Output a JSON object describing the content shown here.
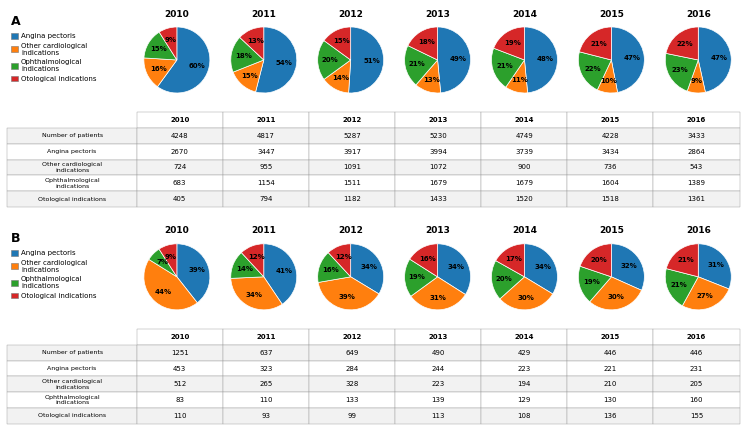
{
  "chart_data": [
    {
      "type": "pie",
      "title": "2010",
      "annotations": [
        "A"
      ],
      "legend": "upper left",
      "data_labels": true,
      "categories": [
        "Angina pectoris",
        "Other cardiological\nindications",
        "Ophthalmological\nindications",
        "Otological indications"
      ],
      "values": [
        60,
        16,
        15,
        9
      ],
      "value_labels": [
        "60%",
        "16%",
        "15%",
        "9%"
      ]
    },
    {
      "type": "pie",
      "title": "2011",
      "data_labels": true,
      "categories": [
        "Angina pectoris",
        "Other cardiological\nindications",
        "Ophthalmological\nindications",
        "Otological indications"
      ],
      "values": [
        54,
        15,
        18,
        13
      ],
      "value_labels": [
        "54%",
        "15%",
        "18%",
        "13%"
      ]
    },
    {
      "type": "pie",
      "title": "2012",
      "data_labels": true,
      "categories": [
        "Angina pectoris",
        "Other cardiological\nindications",
        "Ophthalmological\nindications",
        "Otological indications"
      ],
      "values": [
        51,
        14,
        20,
        15
      ],
      "value_labels": [
        "51%",
        "14%",
        "20%",
        "15%"
      ]
    },
    {
      "type": "pie",
      "title": "2013",
      "data_labels": true,
      "categories": [
        "Angina pectoris",
        "Other cardiological\nindications",
        "Ophthalmological\nindications",
        "Otological indications"
      ],
      "values": [
        49,
        13,
        21,
        18
      ],
      "value_labels": [
        "49%",
        "13%",
        "21%",
        "18%"
      ]
    },
    {
      "type": "pie",
      "title": "2014",
      "data_labels": true,
      "categories": [
        "Angina pectoris",
        "Other cardiological\nindications",
        "Ophthalmological\nindications",
        "Otological indications"
      ],
      "values": [
        48,
        11,
        21,
        19
      ],
      "value_labels": [
        "48%",
        "11%",
        "21%",
        "19%"
      ]
    },
    {
      "type": "pie",
      "title": "2015",
      "data_labels": true,
      "categories": [
        "Angina pectoris",
        "Other cardiological\nindications",
        "Ophthalmological\nindications",
        "Otological indications"
      ],
      "values": [
        47,
        10,
        22,
        21
      ],
      "value_labels": [
        "47%",
        "10%",
        "22%",
        "21%"
      ]
    },
    {
      "type": "pie",
      "title": "2016",
      "data_labels": true,
      "categories": [
        "Angina pectoris",
        "Other cardiological\nindications",
        "Ophthalmological\nindications",
        "Otological indications"
      ],
      "values": [
        47,
        9,
        23,
        22
      ],
      "value_labels": [
        "47%",
        "9%",
        "23%",
        "22%"
      ]
    },
    {
      "type": "table",
      "columns": [
        "2010",
        "2011",
        "2012",
        "2013",
        "2014",
        "2015",
        "2016"
      ],
      "rows": [
        {
          "label": "Number of patients",
          "values": [
            4248,
            4817,
            5287,
            5230,
            4749,
            4228,
            3433
          ]
        },
        {
          "label": "Angina pectoris",
          "values": [
            2670,
            3447,
            3917,
            3994,
            3739,
            3434,
            2864
          ]
        },
        {
          "label": "Other cardiological\nindications",
          "values": [
            724,
            955,
            1091,
            1072,
            900,
            736,
            543
          ]
        },
        {
          "label": "Ophthalmological\nindications",
          "values": [
            683,
            1154,
            1511,
            1679,
            1679,
            1604,
            1389
          ]
        },
        {
          "label": "Otological indications",
          "values": [
            405,
            794,
            1182,
            1433,
            1520,
            1518,
            1361
          ]
        }
      ]
    },
    {
      "type": "pie",
      "title": "2010",
      "annotations": [
        "B"
      ],
      "legend": "upper left",
      "data_labels": true,
      "categories": [
        "Angina pectoris",
        "Other cardiological\nindications",
        "Ophthalmological\nindications",
        "Otological indications"
      ],
      "values": [
        39,
        44,
        7,
        9
      ],
      "value_labels": [
        "39%",
        "44%",
        "7%",
        "9%"
      ]
    },
    {
      "type": "pie",
      "title": "2011",
      "data_labels": true,
      "categories": [
        "Angina pectoris",
        "Other cardiological\nindications",
        "Ophthalmological\nindications",
        "Otological indications"
      ],
      "values": [
        41,
        34,
        14,
        12
      ],
      "value_labels": [
        "41%",
        "34%",
        "14%",
        "12%"
      ]
    },
    {
      "type": "pie",
      "title": "2012",
      "data_labels": true,
      "categories": [
        "Angina pectoris",
        "Other cardiological\nindications",
        "Ophthalmological\nindications",
        "Otological indications"
      ],
      "values": [
        34,
        39,
        16,
        12
      ],
      "value_labels": [
        "34%",
        "39%",
        "16%",
        "12%"
      ]
    },
    {
      "type": "pie",
      "title": "2013",
      "data_labels": true,
      "categories": [
        "Angina pectoris",
        "Other cardiological\nindications",
        "Ophthalmological\nindications",
        "Otological indications"
      ],
      "values": [
        34,
        31,
        19,
        16
      ],
      "value_labels": [
        "34%",
        "31%",
        "19%",
        "16%"
      ]
    },
    {
      "type": "pie",
      "title": "2014",
      "data_labels": true,
      "categories": [
        "Angina pectoris",
        "Other cardiological\nindications",
        "Ophthalmological\nindications",
        "Otological indications"
      ],
      "values": [
        34,
        30,
        20,
        17
      ],
      "value_labels": [
        "34%",
        "30%",
        "20%",
        "17%"
      ]
    },
    {
      "type": "pie",
      "title": "2015",
      "data_labels": true,
      "categories": [
        "Angina pectoris",
        "Other cardiological\nindications",
        "Ophthalmological\nindications",
        "Otological indications"
      ],
      "values": [
        32,
        30,
        19,
        20
      ],
      "value_labels": [
        "32%",
        "30%",
        "19%",
        "20%"
      ]
    },
    {
      "type": "pie",
      "title": "2016",
      "data_labels": true,
      "categories": [
        "Angina pectoris",
        "Other cardiological\nindications",
        "Ophthalmological\nindications",
        "Otological indications"
      ],
      "values": [
        31,
        27,
        21,
        21
      ],
      "value_labels": [
        "31%",
        "27%",
        "21%",
        "21%"
      ]
    },
    {
      "type": "table",
      "columns": [
        "2010",
        "2011",
        "2012",
        "2013",
        "2014",
        "2015",
        "2016"
      ],
      "rows": [
        {
          "label": "Number of patients",
          "values": [
            1251,
            637,
            649,
            490,
            429,
            446,
            446
          ]
        },
        {
          "label": "Angina pectoris",
          "values": [
            453,
            323,
            284,
            244,
            223,
            221,
            231
          ]
        },
        {
          "label": "Other cardiological\nindications",
          "values": [
            512,
            265,
            328,
            223,
            194,
            210,
            205
          ]
        },
        {
          "label": "Ophthalmological\nindications",
          "values": [
            83,
            110,
            133,
            139,
            129,
            130,
            160
          ]
        },
        {
          "label": "Otological indications",
          "values": [
            110,
            93,
            99,
            113,
            108,
            136,
            155
          ]
        }
      ]
    }
  ]
}
